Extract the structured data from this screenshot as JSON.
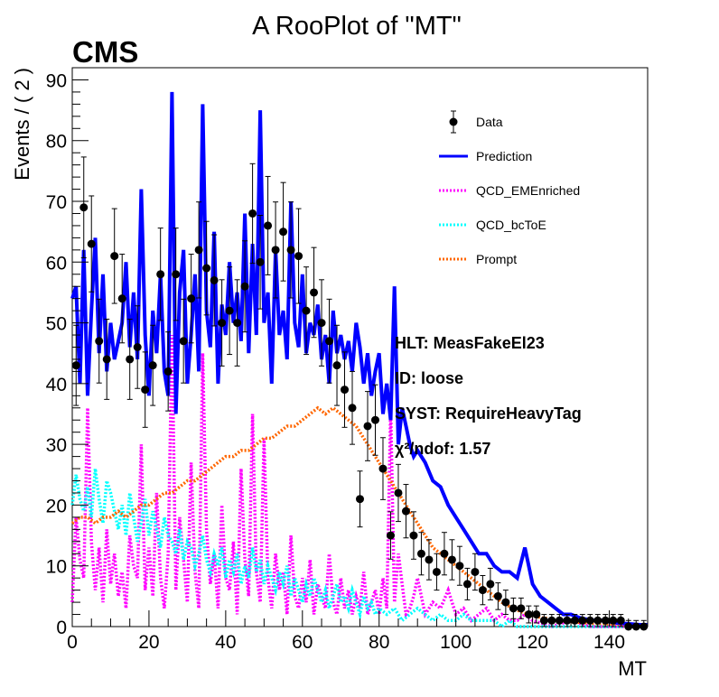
{
  "chart_data": {
    "type": "line",
    "title": "A RooPlot of \"MT\"",
    "experiment_label": "CMS",
    "xlabel": "MT",
    "ylabel": "Events / ( 2 )",
    "xlim": [
      0,
      150
    ],
    "ylim": [
      0,
      92
    ],
    "x_ticks": [
      0,
      20,
      40,
      60,
      80,
      100,
      120,
      140
    ],
    "y_ticks": [
      0,
      10,
      20,
      30,
      40,
      50,
      60,
      70,
      80,
      90
    ],
    "legend_position": "top-right",
    "legend": [
      {
        "label": "Data",
        "style": "marker",
        "color": "#000000"
      },
      {
        "label": "Prediction",
        "style": "solid",
        "color": "#0000ff"
      },
      {
        "label": "QCD_EMEnriched",
        "style": "dotted",
        "color": "#ff00ff"
      },
      {
        "label": "QCD_bcToE",
        "style": "dotted",
        "color": "#00ffff"
      },
      {
        "label": "Prompt",
        "style": "dotted",
        "color": "#ff6600"
      }
    ],
    "annotations": [
      "HLT: MeasFakeEl23",
      "ID: loose",
      "SYST: RequireHeavyTag",
      "χ²/ndof: 1.57"
    ],
    "data": {
      "name": "Data",
      "x": [
        1,
        3,
        5,
        7,
        9,
        11,
        13,
        15,
        17,
        19,
        21,
        23,
        25,
        27,
        29,
        31,
        33,
        35,
        37,
        39,
        41,
        43,
        45,
        47,
        49,
        51,
        53,
        55,
        57,
        59,
        61,
        63,
        65,
        67,
        69,
        71,
        73,
        75,
        77,
        79,
        81,
        83,
        85,
        87,
        89,
        91,
        93,
        95,
        97,
        99,
        101,
        103,
        105,
        107,
        109,
        111,
        113,
        115,
        117,
        119,
        121,
        123,
        125,
        127,
        129,
        131,
        133,
        135,
        137,
        139,
        141,
        143,
        145,
        147,
        149
      ],
      "y": [
        43,
        69,
        63,
        47,
        44,
        61,
        54,
        44,
        46,
        39,
        43,
        58,
        42,
        58,
        47,
        54,
        62,
        59,
        57,
        50,
        52,
        50,
        56,
        68,
        60,
        66,
        62,
        65,
        62,
        61,
        52,
        55,
        50,
        47,
        43,
        39,
        36,
        21,
        33,
        34,
        26,
        15,
        22,
        19,
        15,
        12,
        11,
        9,
        12,
        11,
        10,
        7,
        9,
        6,
        7,
        5,
        4,
        3,
        3,
        2,
        2,
        1,
        1,
        1,
        1,
        1,
        1,
        1,
        1,
        1,
        1,
        1,
        0,
        0,
        0
      ],
      "err": [
        6.6,
        8.3,
        7.9,
        6.9,
        6.6,
        7.8,
        7.3,
        6.6,
        6.8,
        6.2,
        6.6,
        7.6,
        6.5,
        7.6,
        6.9,
        7.3,
        7.9,
        7.7,
        7.5,
        7.1,
        7.2,
        7.1,
        7.5,
        8.2,
        7.7,
        8.1,
        7.9,
        8.1,
        7.9,
        7.8,
        7.2,
        7.4,
        7.1,
        6.9,
        6.6,
        6.2,
        6.0,
        4.6,
        5.7,
        5.8,
        5.1,
        3.9,
        4.7,
        4.4,
        3.9,
        3.5,
        3.3,
        3.0,
        3.5,
        3.3,
        3.2,
        2.6,
        3.0,
        2.4,
        2.6,
        2.2,
        2.0,
        1.7,
        1.7,
        1.4,
        1.4,
        1.0,
        1.0,
        1.0,
        1.0,
        1.0,
        1.0,
        1.0,
        1.0,
        1.0,
        1.0,
        1.0,
        1.0,
        1.0,
        1.0
      ]
    },
    "series": [
      {
        "name": "Prediction",
        "color": "#0000ff",
        "style": "solid",
        "x": [
          0,
          1,
          2,
          3,
          4,
          5,
          6,
          7,
          8,
          9,
          10,
          11,
          12,
          13,
          14,
          15,
          16,
          17,
          18,
          19,
          20,
          21,
          22,
          23,
          24,
          25,
          26,
          27,
          28,
          29,
          30,
          31,
          32,
          33,
          34,
          35,
          36,
          37,
          38,
          39,
          40,
          41,
          42,
          43,
          44,
          45,
          46,
          47,
          48,
          49,
          50,
          51,
          52,
          53,
          54,
          55,
          56,
          57,
          58,
          59,
          60,
          61,
          62,
          63,
          64,
          65,
          66,
          67,
          68,
          69,
          70,
          71,
          72,
          73,
          74,
          75,
          76,
          77,
          78,
          79,
          80,
          81,
          82,
          83,
          84,
          85,
          86,
          87,
          88,
          89,
          90,
          92,
          94,
          96,
          98,
          100,
          102,
          104,
          106,
          108,
          110,
          112,
          114,
          116,
          118,
          120,
          122,
          124,
          126,
          128,
          130,
          132,
          134,
          136,
          138,
          140,
          142,
          144,
          146,
          148,
          150
        ],
        "y": [
          54,
          56,
          40,
          62,
          38,
          52,
          64,
          45,
          58,
          42,
          50,
          44,
          47,
          50,
          60,
          46,
          55,
          44,
          72,
          48,
          38,
          52,
          45,
          58,
          42,
          38,
          88,
          35,
          55,
          62,
          40,
          48,
          58,
          42,
          86,
          52,
          46,
          65,
          40,
          53,
          48,
          60,
          50,
          55,
          47,
          68,
          45,
          63,
          48,
          85,
          50,
          55,
          40,
          62,
          48,
          52,
          44,
          70,
          50,
          46,
          58,
          45,
          50,
          48,
          53,
          44,
          48,
          40,
          52,
          45,
          48,
          44,
          47,
          42,
          50,
          46,
          40,
          45,
          38,
          42,
          45,
          35,
          40,
          34,
          56,
          30,
          36,
          33,
          30,
          28,
          29,
          27,
          24,
          23,
          20,
          18,
          16,
          14,
          12,
          12,
          10,
          9,
          9,
          8,
          13,
          7,
          5,
          4,
          3,
          2,
          2,
          1.5,
          1.2,
          1,
          1,
          0.8,
          0.6,
          0.5,
          0.4,
          0.3,
          0.3
        ]
      },
      {
        "name": "QCD_EMEnriched",
        "color": "#ff00ff",
        "style": "dotted",
        "x": [
          0,
          1,
          2,
          3,
          4,
          5,
          6,
          7,
          8,
          9,
          10,
          11,
          12,
          13,
          14,
          15,
          16,
          17,
          18,
          19,
          20,
          21,
          22,
          23,
          24,
          25,
          26,
          27,
          28,
          29,
          30,
          31,
          32,
          33,
          34,
          35,
          36,
          37,
          38,
          39,
          40,
          41,
          42,
          43,
          44,
          45,
          46,
          47,
          48,
          49,
          50,
          51,
          52,
          53,
          54,
          55,
          56,
          57,
          58,
          59,
          60,
          61,
          62,
          63,
          64,
          65,
          66,
          67,
          68,
          69,
          70,
          71,
          72,
          73,
          74,
          75,
          76,
          77,
          78,
          79,
          80,
          81,
          82,
          83,
          84,
          85,
          86,
          87,
          88,
          89,
          90,
          92,
          94,
          96,
          98,
          100,
          102,
          104,
          106,
          108,
          110,
          112,
          114,
          116,
          118,
          120,
          125,
          130,
          135,
          140,
          145,
          150
        ],
        "y": [
          4,
          18,
          11,
          8,
          36,
          14,
          6,
          13,
          4,
          16,
          7,
          12,
          5,
          9,
          3,
          15,
          10,
          8,
          30,
          6,
          13,
          5,
          22,
          8,
          3,
          12,
          48,
          6,
          18,
          11,
          4,
          27,
          9,
          3,
          45,
          16,
          7,
          12,
          3,
          20,
          8,
          6,
          14,
          2,
          26,
          11,
          5,
          35,
          9,
          4,
          31,
          8,
          3,
          12,
          6,
          9,
          2,
          15,
          5,
          3,
          8,
          4,
          11,
          2,
          7,
          5,
          3,
          12,
          4,
          2,
          8,
          3,
          6,
          2,
          5,
          3,
          9,
          2,
          4,
          6,
          2,
          8,
          3,
          36,
          4,
          12,
          7,
          2,
          3,
          5,
          8,
          2,
          4,
          3,
          6,
          2,
          3,
          1,
          2,
          3,
          1,
          2,
          1,
          1,
          2,
          1,
          0,
          1,
          0,
          0,
          0,
          0
        ]
      },
      {
        "name": "QCD_bcToE",
        "color": "#00ffff",
        "style": "dotted",
        "x": [
          0,
          1,
          2,
          3,
          4,
          5,
          6,
          7,
          8,
          9,
          10,
          11,
          12,
          13,
          14,
          15,
          16,
          17,
          18,
          19,
          20,
          21,
          22,
          23,
          24,
          25,
          26,
          27,
          28,
          29,
          30,
          31,
          32,
          33,
          34,
          35,
          36,
          37,
          38,
          39,
          40,
          41,
          42,
          43,
          44,
          45,
          46,
          47,
          48,
          49,
          50,
          51,
          52,
          53,
          54,
          55,
          56,
          57,
          58,
          59,
          60,
          61,
          62,
          63,
          64,
          65,
          66,
          67,
          68,
          69,
          70,
          71,
          72,
          73,
          74,
          75,
          76,
          77,
          78,
          79,
          80,
          82,
          84,
          86,
          88,
          90,
          92,
          94,
          96,
          98,
          100,
          102,
          104,
          106,
          108,
          110,
          112,
          114,
          116,
          118,
          120,
          125,
          130,
          135,
          140,
          145,
          150
        ],
        "y": [
          20,
          25,
          21,
          19,
          23,
          18,
          26,
          21,
          17,
          24,
          22,
          19,
          16,
          20,
          15,
          22,
          18,
          14,
          17,
          21,
          15,
          19,
          16,
          13,
          18,
          15,
          14,
          12,
          16,
          11,
          14,
          13,
          10,
          12,
          15,
          11,
          9,
          12,
          10,
          13,
          8,
          11,
          9,
          12,
          7,
          10,
          8,
          13,
          9,
          11,
          7,
          10,
          8,
          6,
          9,
          7,
          10,
          5,
          8,
          6,
          4,
          7,
          5,
          8,
          6,
          4,
          6,
          3,
          5,
          7,
          4,
          5,
          3,
          6,
          4,
          2,
          5,
          3,
          4,
          2,
          3,
          2,
          3,
          1,
          2,
          3,
          2,
          1,
          2,
          1,
          1,
          2,
          1,
          1,
          1,
          1,
          0,
          1,
          0,
          0,
          0,
          0,
          0,
          0,
          0,
          0,
          0
        ]
      },
      {
        "name": "Prompt",
        "color": "#ff6600",
        "style": "dotted",
        "x": [
          0,
          2,
          4,
          6,
          8,
          10,
          12,
          14,
          16,
          18,
          20,
          22,
          24,
          26,
          28,
          30,
          32,
          34,
          36,
          38,
          40,
          42,
          44,
          46,
          48,
          50,
          52,
          54,
          56,
          58,
          60,
          62,
          64,
          66,
          68,
          70,
          72,
          74,
          76,
          78,
          80,
          82,
          84,
          86,
          88,
          90,
          92,
          94,
          96,
          98,
          100,
          102,
          104,
          106,
          108,
          110,
          112,
          114,
          116,
          118,
          120,
          122,
          124,
          126,
          128,
          130,
          132,
          134,
          136,
          138,
          140,
          142,
          144,
          146,
          148,
          150
        ],
        "y": [
          17,
          18,
          18,
          17,
          18,
          18,
          19,
          18,
          19,
          20,
          20,
          21,
          22,
          22,
          23,
          24,
          24,
          25,
          26,
          27,
          28,
          28,
          29,
          29,
          30,
          31,
          31,
          32,
          33,
          33,
          34,
          35,
          36,
          35,
          36,
          35,
          34,
          33,
          31,
          29,
          27,
          25,
          23,
          21,
          19,
          17,
          15,
          13,
          12,
          11,
          10,
          9,
          8,
          7,
          6,
          5,
          4,
          3.3,
          2.7,
          2.2,
          1.8,
          1.5,
          1.3,
          1.1,
          0.9,
          0.8,
          0.7,
          0.6,
          0.5,
          0.5,
          0.4,
          0.4,
          0.3,
          0.3,
          0.3,
          0.3
        ]
      }
    ]
  }
}
